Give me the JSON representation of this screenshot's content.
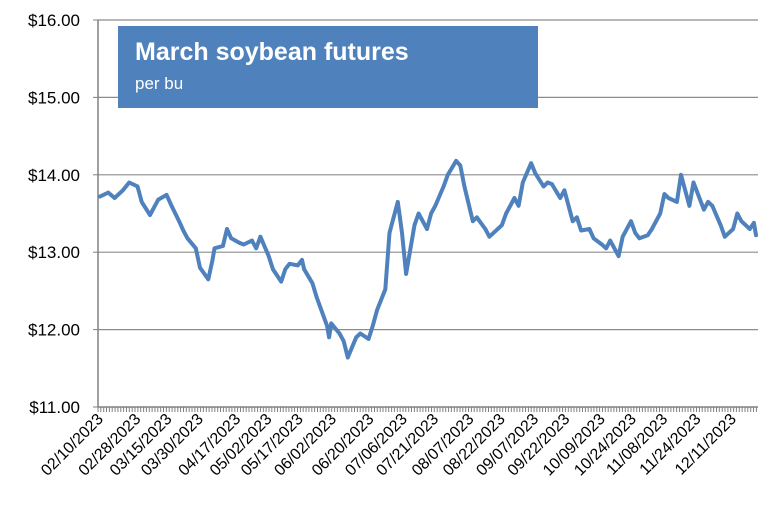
{
  "chart_data": {
    "type": "line",
    "title": "March soybean futures",
    "subtitle": "per bu",
    "xlabel": "",
    "ylabel": "",
    "ylim": [
      11,
      16
    ],
    "y_ticks": [
      "$11.00",
      "$12.00",
      "$13.00",
      "$14.00",
      "$15.00",
      "$16.00"
    ],
    "y_tick_values": [
      11,
      12,
      13,
      14,
      15,
      16
    ],
    "x_tick_labels": [
      "02/10/2023",
      "02/28/2023",
      "03/15/2023",
      "03/30/2023",
      "04/17/2023",
      "05/02/2023",
      "05/17/2023",
      "06/02/2023",
      "06/20/2023",
      "07/06/2023",
      "07/21/2023",
      "08/07/2023",
      "08/22/2023",
      "09/07/2023",
      "09/22/2023",
      "10/09/2023",
      "10/24/2023",
      "11/08/2023",
      "11/24/2023",
      "12/11/2023"
    ],
    "grid": "horizontal",
    "line_color": "#4f81bd",
    "series": [
      {
        "x": [
          "02/10/2023",
          "02/14/2023",
          "02/17/2023",
          "02/21/2023",
          "02/24/2023",
          "02/28/2023",
          "03/02/2023",
          "03/06/2023",
          "03/08/2023",
          "03/10/2023",
          "03/14/2023",
          "03/16/2023",
          "03/20/2023",
          "03/22/2023",
          "03/24/2023",
          "03/28/2023",
          "03/30/2023",
          "04/03/2023",
          "04/05/2023",
          "04/06/2023",
          "04/10/2023",
          "04/12/2023",
          "04/14/2023",
          "04/18/2023",
          "04/20/2023",
          "04/24/2023",
          "04/26/2023",
          "04/28/2023",
          "05/02/2023",
          "05/04/2023",
          "05/08/2023",
          "05/10/2023",
          "05/12/2023",
          "05/16/2023",
          "05/18/2023",
          "05/19/2023",
          "05/23/2023",
          "05/25/2023",
          "05/30/2023",
          "05/31/2023",
          "06/01/2023",
          "06/05/2023",
          "06/07/2023",
          "06/09/2023",
          "06/13/2023",
          "06/15/2023",
          "06/19/2023",
          "06/21/2023",
          "06/23/2023",
          "06/27/2023",
          "06/29/2023",
          "07/03/2023",
          "07/05/2023",
          "07/07/2023",
          "07/11/2023",
          "07/13/2023",
          "07/17/2023",
          "07/19/2023",
          "07/21/2023",
          "07/25/2023",
          "07/27/2023",
          "07/31/2023",
          "08/02/2023",
          "08/04/2023",
          "08/08/2023",
          "08/10/2023",
          "08/14/2023",
          "08/16/2023",
          "08/18/2023",
          "08/22/2023",
          "08/24/2023",
          "08/28/2023",
          "08/30/2023",
          "09/01/2023",
          "09/05/2023",
          "09/07/2023",
          "09/11/2023",
          "09/13/2023",
          "09/15/2023",
          "09/19/2023",
          "09/21/2023",
          "09/25/2023",
          "09/27/2023",
          "09/29/2023",
          "10/03/2023",
          "10/05/2023",
          "10/09/2023",
          "10/11/2023",
          "10/13/2023",
          "10/17/2023",
          "10/19/2023",
          "10/23/2023",
          "10/25/2023",
          "10/27/2023",
          "10/31/2023",
          "11/02/2023",
          "11/06/2023",
          "11/08/2023",
          "11/10/2023",
          "11/14/2023",
          "11/16/2023",
          "11/20/2023",
          "11/22/2023",
          "11/27/2023",
          "11/29/2023",
          "12/01/2023",
          "12/05/2023",
          "12/07/2023",
          "12/11/2023",
          "12/13/2023",
          "12/15/2023",
          "12/19/2023",
          "12/21/2023",
          "12/22/2023"
        ],
        "y": [
          13.72,
          13.77,
          13.7,
          13.8,
          13.9,
          13.85,
          13.65,
          13.48,
          13.58,
          13.68,
          13.74,
          13.62,
          13.4,
          13.28,
          13.18,
          13.05,
          12.8,
          12.65,
          12.9,
          13.05,
          13.08,
          13.3,
          13.18,
          13.12,
          13.1,
          13.15,
          13.05,
          13.2,
          12.95,
          12.78,
          12.62,
          12.78,
          12.85,
          12.83,
          12.9,
          12.78,
          12.6,
          12.42,
          12.05,
          11.9,
          12.08,
          11.95,
          11.85,
          11.64,
          11.9,
          11.95,
          11.88,
          12.05,
          12.25,
          12.52,
          13.25,
          13.65,
          13.25,
          12.72,
          13.35,
          13.5,
          13.3,
          13.5,
          13.6,
          13.85,
          14.0,
          14.18,
          14.12,
          13.85,
          13.4,
          13.45,
          13.3,
          13.2,
          13.25,
          13.35,
          13.5,
          13.7,
          13.6,
          13.9,
          14.15,
          14.02,
          13.85,
          13.9,
          13.88,
          13.7,
          13.8,
          13.4,
          13.45,
          13.28,
          13.3,
          13.18,
          13.1,
          13.05,
          13.15,
          12.95,
          13.2,
          13.4,
          13.25,
          13.18,
          13.22,
          13.3,
          13.5,
          13.75,
          13.7,
          13.65,
          14.0,
          13.6,
          13.9,
          13.55,
          13.65,
          13.6,
          13.35,
          13.2,
          13.3,
          13.5,
          13.4,
          13.3,
          13.38,
          13.22
        ]
      }
    ]
  }
}
